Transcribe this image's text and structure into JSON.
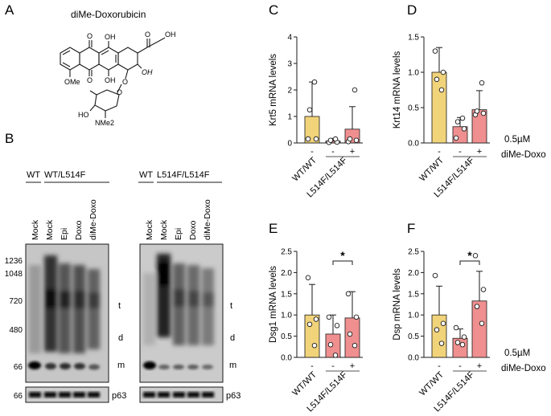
{
  "panels": {
    "A": {
      "letter": "A",
      "compound": "diMe-Doxorubicin",
      "atoms": [
        "O",
        "OH",
        "O",
        "OH",
        "OH",
        "OMe",
        "O",
        "OH",
        "O",
        "O",
        "HO",
        "NMe2"
      ]
    },
    "B": {
      "letter": "B",
      "left_blot": {
        "group_labels": [
          "WT",
          "WT/L514F"
        ],
        "lanes": [
          "Mock",
          "Mock",
          "Epi",
          "Doxo",
          "diMe-Doxo"
        ],
        "markers": [
          "1236",
          "1048",
          "720",
          "480",
          "66"
        ],
        "band_labels": [
          "t",
          "d",
          "m"
        ],
        "loading_marker": "66",
        "loading_label": "p63"
      },
      "right_blot": {
        "group_labels": [
          "WT",
          "L514F/L514F"
        ],
        "lanes": [
          "Mock",
          "Mock",
          "Epi",
          "Doxo",
          "diMe-Doxo"
        ],
        "band_labels": [
          "t",
          "d",
          "m"
        ],
        "loading_label": "p63"
      }
    },
    "treatment_note": {
      "top": "0.5µM",
      "bottom": "diMe-Doxo"
    },
    "treatment_note_2": {
      "top": "0.5µM",
      "bottom": "diMe-Doxo"
    }
  },
  "chart_data": [
    {
      "panel": "C",
      "type": "bar",
      "ylabel": "Krt5 mRNA levels",
      "ylim": [
        0,
        4
      ],
      "yticks": [
        0,
        1,
        2,
        3,
        4
      ],
      "categories": [
        "WT/WT",
        "L514F/L514F",
        "L514F/L514F"
      ],
      "xtick_labels": [
        "WT/WT",
        "L514F/L514F"
      ],
      "treatment": [
        "-",
        "-",
        "+"
      ],
      "values": [
        1.0,
        0.07,
        0.52
      ],
      "errors": [
        1.3,
        0.1,
        0.85
      ],
      "points": [
        [
          0.15,
          0.15,
          1.25,
          2.3
        ],
        [
          0.02,
          0.03,
          0.1,
          0.15
        ],
        [
          0.05,
          0.1,
          0.15,
          2.0
        ]
      ],
      "colors": [
        "#f1d37a",
        "#ef8f8f",
        "#ef8f8f"
      ],
      "significance": []
    },
    {
      "panel": "D",
      "type": "bar",
      "ylabel": "Krt14 mRNA levels",
      "ylim": [
        0,
        1.5
      ],
      "yticks": [
        0.0,
        0.5,
        1.0,
        1.5
      ],
      "categories": [
        "WT/WT",
        "L514F/L514F",
        "L514F/L514F"
      ],
      "xtick_labels": [
        "WT/WT",
        "L514F/L514F"
      ],
      "treatment": [
        "-",
        "-",
        "+"
      ],
      "values": [
        1.0,
        0.23,
        0.47
      ],
      "errors": [
        0.35,
        0.13,
        0.27
      ],
      "points": [
        [
          1.3,
          1.0,
          0.9,
          0.75
        ],
        [
          0.07,
          0.2,
          0.3,
          0.35
        ],
        [
          0.4,
          0.42,
          0.45,
          0.85
        ]
      ],
      "colors": [
        "#f1d37a",
        "#ef8f8f",
        "#ef8f8f"
      ],
      "significance": []
    },
    {
      "panel": "E",
      "type": "bar",
      "ylabel": "Dsg1 mRNA levels",
      "ylim": [
        0,
        2.5
      ],
      "yticks": [
        0.0,
        0.5,
        1.0,
        1.5,
        2.0,
        2.5
      ],
      "categories": [
        "WT/WT",
        "L514F/L514F",
        "L514F/L514F"
      ],
      "xtick_labels": [
        "WT/WT",
        "L514F/L514F"
      ],
      "treatment": [
        "-",
        "-",
        "+"
      ],
      "values": [
        1.0,
        0.55,
        0.93
      ],
      "errors": [
        0.72,
        0.45,
        0.62
      ],
      "points": [
        [
          1.88,
          0.9,
          0.78,
          0.28
        ],
        [
          0.95,
          0.75,
          0.3,
          0.05
        ],
        [
          1.5,
          0.95,
          0.55,
          0.28
        ]
      ],
      "colors": [
        "#f1d37a",
        "#ef8f8f",
        "#ef8f8f"
      ],
      "significance": [
        {
          "between": [
            1,
            2
          ],
          "label": "*"
        }
      ]
    },
    {
      "panel": "F",
      "type": "bar",
      "ylabel": "Dsp mRNA levels",
      "ylim": [
        0,
        2.5
      ],
      "yticks": [
        0.0,
        0.5,
        1.0,
        1.5,
        2.0,
        2.5
      ],
      "categories": [
        "WT/WT",
        "L514F/L514F",
        "L514F/L514F"
      ],
      "xtick_labels": [
        "WT/WT",
        "L514F/L514F"
      ],
      "treatment": [
        "-",
        "-",
        "+"
      ],
      "values": [
        1.0,
        0.45,
        1.33
      ],
      "errors": [
        0.68,
        0.22,
        0.7
      ],
      "points": [
        [
          1.93,
          0.8,
          0.65,
          0.33
        ],
        [
          0.7,
          0.48,
          0.35,
          0.3
        ],
        [
          2.4,
          1.6,
          1.2,
          0.8
        ]
      ],
      "colors": [
        "#f1d37a",
        "#ef8f8f",
        "#ef8f8f"
      ],
      "significance": [
        {
          "between": [
            1,
            2
          ],
          "label": "*"
        }
      ]
    }
  ]
}
